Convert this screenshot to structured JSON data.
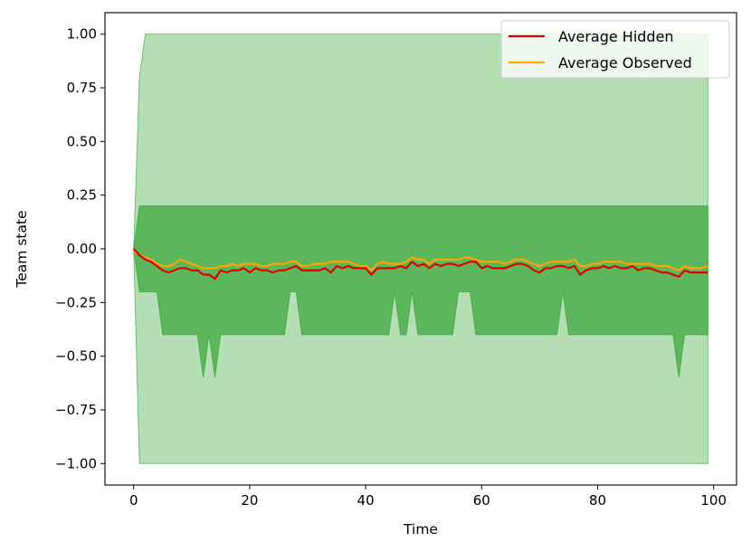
{
  "chart_data": {
    "type": "line",
    "xlabel": "Time",
    "ylabel": "Team state",
    "xlim": [
      -4.95,
      103.95
    ],
    "ylim": [
      -1.1,
      1.1
    ],
    "xticks": [
      0,
      20,
      40,
      60,
      80,
      100
    ],
    "yticks": [
      1.0,
      0.75,
      0.5,
      0.25,
      0.0,
      -0.25,
      -0.5,
      -0.75,
      -1.0
    ],
    "ytick_labels": [
      "1.00",
      "0.75",
      "0.50",
      "0.25",
      "0.00",
      "−0.25",
      "−0.50",
      "−0.75",
      "−1.00"
    ],
    "grid": false,
    "legend_position": "top-right",
    "colors": {
      "hidden": "#e00000",
      "observed": "#ffa500",
      "band": "#2ca02c"
    },
    "series": [
      {
        "name": "Average Hidden",
        "color": "#e00000",
        "x": [
          0,
          1,
          2,
          3,
          4,
          5,
          6,
          7,
          8,
          9,
          10,
          11,
          12,
          13,
          14,
          15,
          16,
          17,
          18,
          19,
          20,
          21,
          22,
          23,
          24,
          25,
          26,
          27,
          28,
          29,
          30,
          31,
          32,
          33,
          34,
          35,
          36,
          37,
          38,
          39,
          40,
          41,
          42,
          43,
          44,
          45,
          46,
          47,
          48,
          49,
          50,
          51,
          52,
          53,
          54,
          55,
          56,
          57,
          58,
          59,
          60,
          61,
          62,
          63,
          64,
          65,
          66,
          67,
          68,
          69,
          70,
          71,
          72,
          73,
          74,
          75,
          76,
          77,
          78,
          79,
          80,
          81,
          82,
          83,
          84,
          85,
          86,
          87,
          88,
          89,
          90,
          91,
          92,
          93,
          94,
          95,
          96,
          97,
          98,
          99
        ],
        "values": [
          0.0,
          -0.03,
          -0.05,
          -0.06,
          -0.08,
          -0.1,
          -0.11,
          -0.1,
          -0.09,
          -0.09,
          -0.1,
          -0.1,
          -0.12,
          -0.12,
          -0.14,
          -0.1,
          -0.11,
          -0.1,
          -0.1,
          -0.09,
          -0.11,
          -0.09,
          -0.1,
          -0.1,
          -0.11,
          -0.1,
          -0.1,
          -0.09,
          -0.08,
          -0.1,
          -0.1,
          -0.1,
          -0.1,
          -0.09,
          -0.11,
          -0.08,
          -0.09,
          -0.08,
          -0.09,
          -0.09,
          -0.09,
          -0.12,
          -0.09,
          -0.09,
          -0.09,
          -0.09,
          -0.08,
          -0.09,
          -0.06,
          -0.08,
          -0.07,
          -0.09,
          -0.07,
          -0.08,
          -0.07,
          -0.07,
          -0.08,
          -0.07,
          -0.06,
          -0.06,
          -0.09,
          -0.08,
          -0.09,
          -0.09,
          -0.09,
          -0.08,
          -0.07,
          -0.07,
          -0.08,
          -0.1,
          -0.11,
          -0.09,
          -0.09,
          -0.08,
          -0.08,
          -0.09,
          -0.08,
          -0.12,
          -0.1,
          -0.09,
          -0.09,
          -0.08,
          -0.09,
          -0.08,
          -0.09,
          -0.09,
          -0.08,
          -0.1,
          -0.09,
          -0.09,
          -0.1,
          -0.11,
          -0.11,
          -0.12,
          -0.13,
          -0.1,
          -0.11,
          -0.11,
          -0.11,
          -0.11
        ]
      },
      {
        "name": "Average Observed",
        "color": "#ffa500",
        "x": [
          0,
          1,
          2,
          3,
          4,
          5,
          6,
          7,
          8,
          9,
          10,
          11,
          12,
          13,
          14,
          15,
          16,
          17,
          18,
          19,
          20,
          21,
          22,
          23,
          24,
          25,
          26,
          27,
          28,
          29,
          30,
          31,
          32,
          33,
          34,
          35,
          36,
          37,
          38,
          39,
          40,
          41,
          42,
          43,
          44,
          45,
          46,
          47,
          48,
          49,
          50,
          51,
          52,
          53,
          54,
          55,
          56,
          57,
          58,
          59,
          60,
          61,
          62,
          63,
          64,
          65,
          66,
          67,
          68,
          69,
          70,
          71,
          72,
          73,
          74,
          75,
          76,
          77,
          78,
          79,
          80,
          81,
          82,
          83,
          84,
          85,
          86,
          87,
          88,
          89,
          90,
          91,
          92,
          93,
          94,
          95,
          96,
          97,
          98,
          99
        ],
        "values": [
          -0.01,
          -0.03,
          -0.04,
          -0.05,
          -0.07,
          -0.08,
          -0.08,
          -0.07,
          -0.05,
          -0.06,
          -0.07,
          -0.08,
          -0.09,
          -0.09,
          -0.09,
          -0.08,
          -0.08,
          -0.07,
          -0.08,
          -0.07,
          -0.07,
          -0.07,
          -0.08,
          -0.08,
          -0.07,
          -0.07,
          -0.07,
          -0.06,
          -0.06,
          -0.08,
          -0.08,
          -0.07,
          -0.07,
          -0.07,
          -0.06,
          -0.06,
          -0.06,
          -0.06,
          -0.07,
          -0.08,
          -0.08,
          -0.1,
          -0.07,
          -0.06,
          -0.07,
          -0.07,
          -0.07,
          -0.06,
          -0.04,
          -0.05,
          -0.05,
          -0.07,
          -0.05,
          -0.05,
          -0.05,
          -0.05,
          -0.05,
          -0.04,
          -0.04,
          -0.05,
          -0.06,
          -0.06,
          -0.06,
          -0.06,
          -0.07,
          -0.06,
          -0.05,
          -0.05,
          -0.06,
          -0.07,
          -0.08,
          -0.07,
          -0.06,
          -0.06,
          -0.06,
          -0.06,
          -0.05,
          -0.08,
          -0.08,
          -0.07,
          -0.07,
          -0.06,
          -0.06,
          -0.06,
          -0.06,
          -0.07,
          -0.07,
          -0.07,
          -0.07,
          -0.07,
          -0.08,
          -0.08,
          -0.08,
          -0.09,
          -0.1,
          -0.08,
          -0.09,
          -0.09,
          -0.09,
          -0.08
        ]
      }
    ],
    "bands": [
      {
        "color": "#2ca02c",
        "alpha": 0.35,
        "x": [
          0,
          1,
          2,
          99
        ],
        "lower": [
          0.0,
          -1.0,
          -1.0,
          -1.0
        ],
        "upper": [
          0.0,
          0.8,
          1.0,
          1.0
        ]
      },
      {
        "color": "#2ca02c",
        "alpha": 0.65,
        "x": [
          0,
          1,
          2,
          3,
          4,
          5,
          6,
          7,
          8,
          9,
          10,
          11,
          12,
          13,
          14,
          15,
          16,
          17,
          18,
          19,
          20,
          21,
          22,
          23,
          24,
          25,
          26,
          27,
          28,
          29,
          30,
          31,
          32,
          33,
          34,
          35,
          36,
          37,
          38,
          39,
          40,
          41,
          42,
          43,
          44,
          45,
          46,
          47,
          48,
          49,
          50,
          51,
          52,
          53,
          54,
          55,
          56,
          57,
          58,
          59,
          60,
          61,
          62,
          63,
          64,
          65,
          66,
          67,
          68,
          69,
          70,
          71,
          72,
          73,
          74,
          75,
          76,
          77,
          78,
          79,
          80,
          81,
          82,
          83,
          84,
          85,
          86,
          87,
          88,
          89,
          90,
          91,
          92,
          93,
          94,
          95,
          96,
          97,
          98,
          99
        ],
        "lower": [
          0.0,
          -0.2,
          -0.2,
          -0.2,
          -0.2,
          -0.4,
          -0.4,
          -0.4,
          -0.4,
          -0.4,
          -0.4,
          -0.4,
          -0.6,
          -0.4,
          -0.6,
          -0.4,
          -0.4,
          -0.4,
          -0.4,
          -0.4,
          -0.4,
          -0.4,
          -0.4,
          -0.4,
          -0.4,
          -0.4,
          -0.4,
          -0.2,
          -0.2,
          -0.4,
          -0.4,
          -0.4,
          -0.4,
          -0.4,
          -0.4,
          -0.4,
          -0.4,
          -0.4,
          -0.4,
          -0.4,
          -0.4,
          -0.4,
          -0.4,
          -0.4,
          -0.4,
          -0.2,
          -0.4,
          -0.4,
          -0.2,
          -0.4,
          -0.4,
          -0.4,
          -0.4,
          -0.4,
          -0.4,
          -0.4,
          -0.2,
          -0.2,
          -0.2,
          -0.4,
          -0.4,
          -0.4,
          -0.4,
          -0.4,
          -0.4,
          -0.4,
          -0.4,
          -0.4,
          -0.4,
          -0.4,
          -0.4,
          -0.4,
          -0.4,
          -0.4,
          -0.2,
          -0.4,
          -0.4,
          -0.4,
          -0.4,
          -0.4,
          -0.4,
          -0.4,
          -0.4,
          -0.4,
          -0.4,
          -0.4,
          -0.4,
          -0.4,
          -0.4,
          -0.4,
          -0.4,
          -0.4,
          -0.4,
          -0.4,
          -0.6,
          -0.4,
          -0.4,
          -0.4,
          -0.4,
          -0.4
        ],
        "upper": [
          0.0,
          0.2,
          0.2,
          0.2,
          0.2,
          0.2,
          0.2,
          0.2,
          0.2,
          0.2,
          0.2,
          0.2,
          0.2,
          0.2,
          0.2,
          0.2,
          0.2,
          0.2,
          0.2,
          0.2,
          0.2,
          0.2,
          0.2,
          0.2,
          0.2,
          0.2,
          0.2,
          0.2,
          0.2,
          0.2,
          0.2,
          0.2,
          0.2,
          0.2,
          0.2,
          0.2,
          0.2,
          0.2,
          0.2,
          0.2,
          0.2,
          0.2,
          0.2,
          0.2,
          0.2,
          0.2,
          0.2,
          0.2,
          0.2,
          0.2,
          0.2,
          0.2,
          0.2,
          0.2,
          0.2,
          0.2,
          0.2,
          0.2,
          0.2,
          0.2,
          0.2,
          0.2,
          0.2,
          0.2,
          0.2,
          0.2,
          0.2,
          0.2,
          0.2,
          0.2,
          0.2,
          0.2,
          0.2,
          0.2,
          0.2,
          0.2,
          0.2,
          0.2,
          0.2,
          0.2,
          0.2,
          0.2,
          0.2,
          0.2,
          0.2,
          0.2,
          0.2,
          0.2,
          0.2,
          0.2,
          0.2,
          0.2,
          0.2,
          0.2,
          0.2,
          0.2,
          0.2,
          0.2,
          0.2,
          0.2
        ]
      }
    ]
  }
}
